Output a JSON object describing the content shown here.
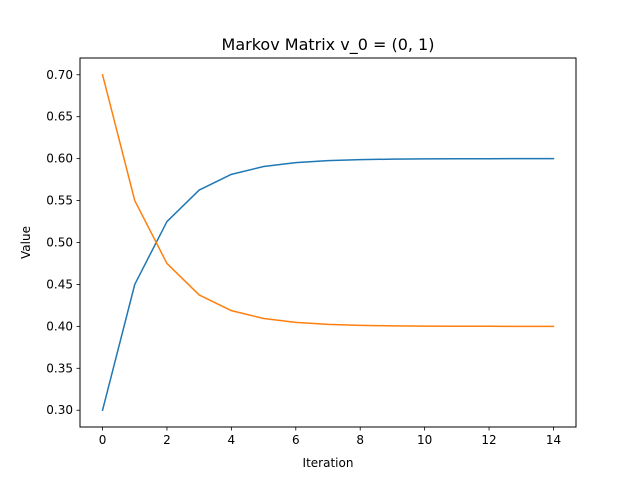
{
  "chart_data": {
    "type": "line",
    "title": "Markov Matrix v_0 = (0, 1)",
    "xlabel": "Iteration",
    "ylabel": "Value",
    "x": [
      0,
      1,
      2,
      3,
      4,
      5,
      6,
      7,
      8,
      9,
      10,
      11,
      12,
      13,
      14
    ],
    "xlim": [
      -0.7,
      14.7
    ],
    "ylim": [
      0.28,
      0.72
    ],
    "xticks": [
      0,
      2,
      4,
      6,
      8,
      10,
      12,
      14
    ],
    "yticks": [
      0.3,
      0.35,
      0.4,
      0.45,
      0.5,
      0.55,
      0.6,
      0.65,
      0.7
    ],
    "xtick_labels": [
      "0",
      "2",
      "4",
      "6",
      "8",
      "10",
      "12",
      "14"
    ],
    "ytick_labels": [
      "0.30",
      "0.35",
      "0.40",
      "0.45",
      "0.50",
      "0.55",
      "0.60",
      "0.65",
      "0.70"
    ],
    "grid": false,
    "series": [
      {
        "color": "#1f77b4",
        "values": [
          0.3,
          0.45,
          0.525,
          0.5625,
          0.58125,
          0.590625,
          0.5953,
          0.5977,
          0.5988,
          0.5994,
          0.5997,
          0.5999,
          0.5999,
          0.6,
          0.6
        ]
      },
      {
        "color": "#ff7f0e",
        "values": [
          0.7,
          0.55,
          0.475,
          0.4375,
          0.41875,
          0.409375,
          0.4047,
          0.4023,
          0.4012,
          0.4006,
          0.4003,
          0.4001,
          0.4001,
          0.4,
          0.4
        ]
      }
    ]
  }
}
